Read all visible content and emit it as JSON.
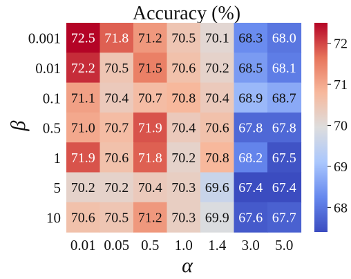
{
  "chart_data": {
    "type": "heatmap",
    "title": "Accuracy (%)",
    "xlabel": "α",
    "ylabel": "β",
    "x_categories": [
      "0.01",
      "0.05",
      "0.5",
      "1.0",
      "1.4",
      "3.0",
      "5.0"
    ],
    "y_categories": [
      "0.001",
      "0.01",
      "0.1",
      "0.5",
      "1",
      "5",
      "10"
    ],
    "values": [
      [
        72.5,
        71.8,
        71.2,
        70.5,
        70.1,
        68.3,
        68.0
      ],
      [
        72.2,
        70.5,
        71.5,
        70.6,
        70.2,
        68.5,
        68.1
      ],
      [
        71.1,
        70.4,
        70.7,
        70.8,
        70.4,
        68.9,
        68.7
      ],
      [
        71.0,
        70.7,
        71.9,
        70.4,
        70.6,
        67.8,
        67.8
      ],
      [
        71.9,
        70.6,
        71.8,
        70.2,
        70.8,
        68.2,
        67.5
      ],
      [
        70.2,
        70.2,
        70.4,
        70.3,
        69.6,
        67.4,
        67.4
      ],
      [
        70.6,
        70.5,
        71.2,
        70.3,
        69.9,
        67.6,
        67.7
      ]
    ],
    "colorbar": {
      "min": 67.4,
      "max": 72.5,
      "ticks": [
        "68",
        "69",
        "70",
        "71",
        "72"
      ],
      "colormap": "coolwarm"
    },
    "colormap_stops": [
      "#3b4cc0",
      "#6688ee",
      "#aac7fd",
      "#dddddd",
      "#f7b89c",
      "#e7745b",
      "#b40426"
    ]
  }
}
